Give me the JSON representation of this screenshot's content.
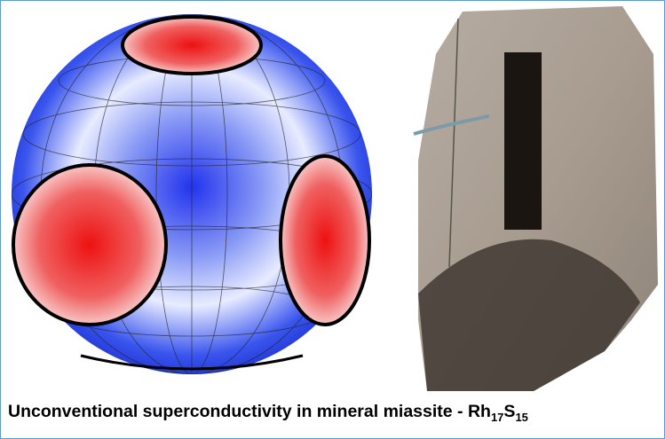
{
  "caption": {
    "text": "Unconventional superconductivity in mineral miassite - ",
    "formula": [
      {
        "element": "Rh",
        "count": "17"
      },
      {
        "element": "S",
        "count": "15"
      }
    ]
  }
}
